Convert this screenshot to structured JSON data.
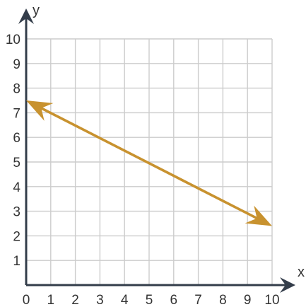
{
  "chart_data": {
    "type": "line",
    "title": "",
    "xlabel": "x",
    "ylabel": "y",
    "xlim": [
      0,
      10
    ],
    "ylim": [
      0,
      10
    ],
    "x_ticks": [
      "0",
      "1",
      "2",
      "3",
      "4",
      "5",
      "6",
      "7",
      "8",
      "9",
      "10"
    ],
    "y_ticks": [
      "1",
      "2",
      "3",
      "4",
      "5",
      "6",
      "7",
      "8",
      "9",
      "10"
    ],
    "grid": true,
    "series": [
      {
        "x": [
          0,
          10
        ],
        "y": [
          7.5,
          2.4
        ],
        "arrows": "both",
        "color": "#C8922F"
      }
    ]
  },
  "colors": {
    "axis": "#333d4a",
    "grid": "#cccccc",
    "line": "#C8922F"
  }
}
